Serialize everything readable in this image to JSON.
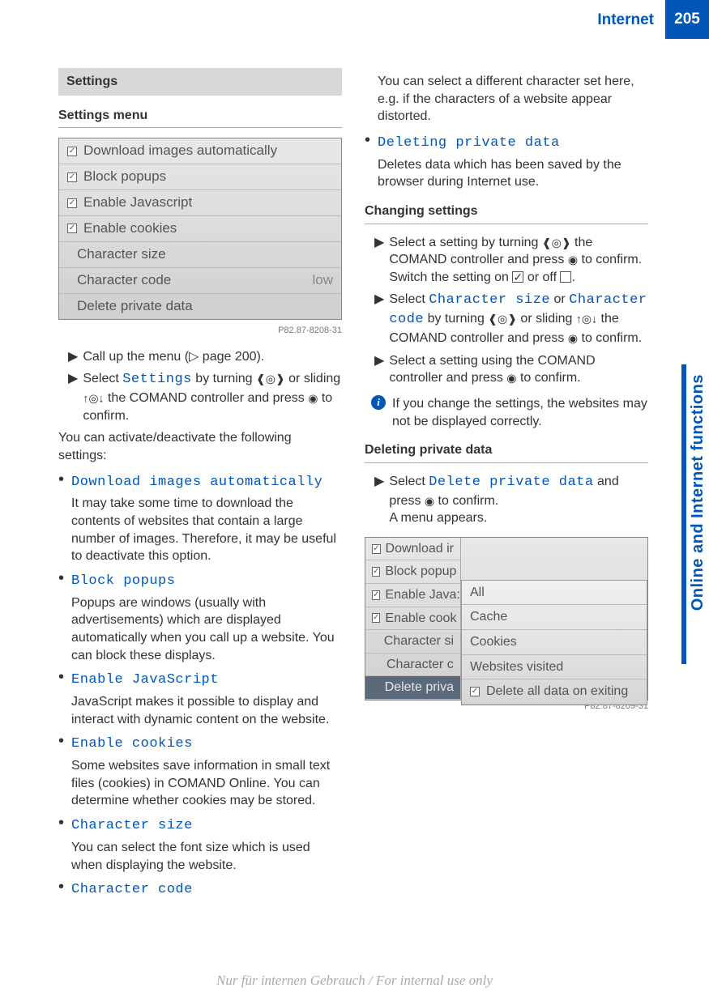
{
  "header": {
    "title": "Internet",
    "page_number": "205"
  },
  "side_tab": "Online and Internet functions",
  "left": {
    "section_bar": "Settings",
    "subhead": "Settings menu",
    "screenshot1": {
      "rows": [
        {
          "checked": true,
          "label": "Download images automatically"
        },
        {
          "checked": true,
          "label": "Block popups"
        },
        {
          "checked": true,
          "label": "Enable Javascript"
        },
        {
          "checked": true,
          "label": "Enable cookies"
        },
        {
          "checked": false,
          "label": "Character size"
        },
        {
          "checked": false,
          "label": "Character code",
          "right": "low"
        },
        {
          "checked": false,
          "label": "Delete private data"
        }
      ],
      "caption": "P82.87-8208-31"
    },
    "step1": "Call up the menu (▷ page 200).",
    "step2_a": "Select ",
    "step2_cmd": "Settings",
    "step2_b": " by turning ",
    "step2_c": " or sliding ",
    "step2_d": " the COMAND controller and press ",
    "step2_e": " to confirm.",
    "para1": "You can activate/deactivate the following settings:",
    "items": [
      {
        "cmd": "Download images automatically",
        "desc": "It may take some time to download the contents of websites that contain a large number of images. Therefore, it may be useful to deactivate this option."
      },
      {
        "cmd": "Block popups",
        "desc": "Popups are windows (usually with advertisements) which are displayed automatically when you call up a website. You can block these displays."
      },
      {
        "cmd": "Enable JavaScript",
        "desc": "JavaScript makes it possible to display and interact with dynamic content on the website."
      },
      {
        "cmd": "Enable cookies",
        "desc": "Some websites save information in small text files (cookies) in COMAND Online. You can determine whether cookies may be stored."
      },
      {
        "cmd": "Character size",
        "desc": "You can select the font size which is used when displaying the website."
      },
      {
        "cmd": "Character code",
        "desc": ""
      }
    ]
  },
  "right": {
    "top_para": "You can select a different character set here, e.g. if the characters of a website appear distorted.",
    "last_item_cmd": "Deleting private data",
    "last_item_desc": "Deletes data which has been saved by the browser during Internet use.",
    "subhead1": "Changing settings",
    "s1a": "Select a setting by turning ",
    "s1b": " the COMAND controller and press ",
    "s1c": " to confirm.",
    "s1d": "Switch the setting on ",
    "s1e": " or off ",
    "s1f": ".",
    "s2a": "Select ",
    "s2cmd1": "Character size",
    "s2b": " or ",
    "s2cmd2": "Character code",
    "s2c": " by turning ",
    "s2d": " or sliding ",
    "s2e": " the COMAND controller and press ",
    "s2f": " to confirm.",
    "s3a": "Select a setting using the COMAND controller and press ",
    "s3b": " to confirm.",
    "info": "If you change the settings, the websites may not be displayed correctly.",
    "subhead2": "Deleting private data",
    "d1a": "Select ",
    "d1cmd": "Delete private data",
    "d1b": " and press ",
    "d1c": " to confirm.",
    "d1d": "A menu appears.",
    "screenshot2": {
      "left_rows": [
        {
          "chk": true,
          "t": "Download ir"
        },
        {
          "chk": true,
          "t": "Block popup"
        },
        {
          "chk": true,
          "t": "Enable Java:"
        },
        {
          "chk": true,
          "t": "Enable cook"
        },
        {
          "chk": false,
          "t": "Character si"
        },
        {
          "chk": false,
          "t": "Character c"
        },
        {
          "chk": false,
          "t": "Delete priva",
          "sel": true
        }
      ],
      "right_rows": [
        "All",
        "Cache",
        "Cookies",
        "Websites visited"
      ],
      "right_last": "Delete all data on exiting",
      "caption": "P82.87-8209-31"
    }
  },
  "footer": "Nur für internen Gebrauch / For internal use only",
  "glyphs": {
    "turn": "❰◎❱",
    "slide_v": "↑◎↓",
    "press": "◉",
    "tri": "▶"
  }
}
